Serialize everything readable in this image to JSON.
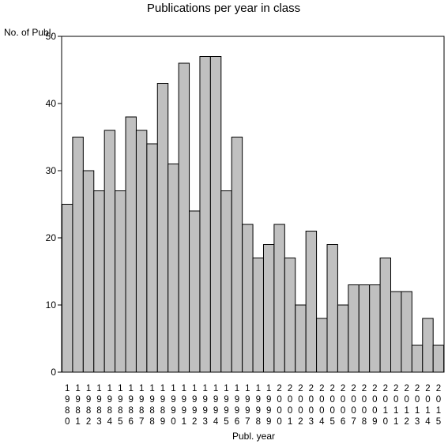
{
  "chart_data": {
    "type": "bar",
    "title": "Publications per year in class",
    "ylabel": "No. of Publ.",
    "xlabel": "Publ. year",
    "ylim": [
      0,
      50
    ],
    "yticks": [
      0,
      10,
      20,
      30,
      40,
      50
    ],
    "grid": false,
    "legend": "none",
    "categories": [
      "1980",
      "1981",
      "1982",
      "1983",
      "1984",
      "1985",
      "1986",
      "1987",
      "1988",
      "1989",
      "1990",
      "1991",
      "1992",
      "1993",
      "1994",
      "1995",
      "1996",
      "1997",
      "1998",
      "1999",
      "2000",
      "2001",
      "2002",
      "2003",
      "2004",
      "2005",
      "2006",
      "2007",
      "2008",
      "2009",
      "2010",
      "2011",
      "2012",
      "2013",
      "2014",
      "2015"
    ],
    "values": [
      25,
      35,
      30,
      27,
      36,
      27,
      38,
      36,
      34,
      43,
      31,
      46,
      24,
      47,
      47,
      27,
      35,
      22,
      17,
      19,
      22,
      17,
      10,
      21,
      8,
      19,
      10,
      13,
      13,
      13,
      17,
      12,
      12,
      4,
      8,
      4
    ],
    "colors": {
      "bar_fill": "#c0c0c0",
      "bar_stroke": "#000000"
    }
  }
}
